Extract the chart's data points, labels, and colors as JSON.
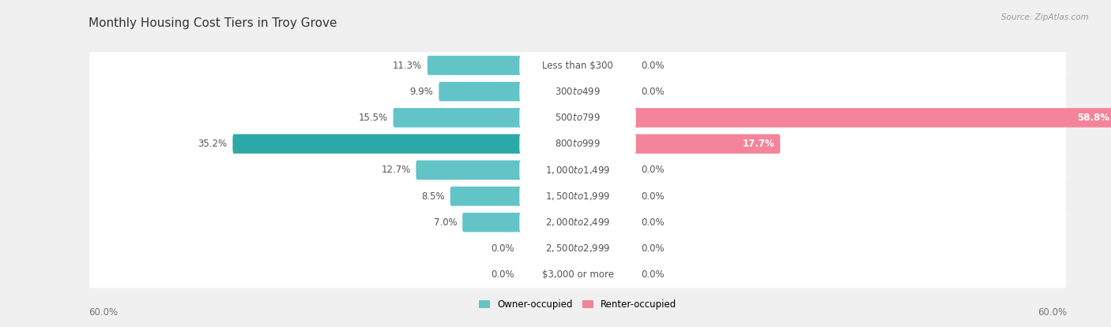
{
  "title": "Monthly Housing Cost Tiers in Troy Grove",
  "source": "Source: ZipAtlas.com",
  "categories": [
    "Less than $300",
    "$300 to $499",
    "$500 to $799",
    "$800 to $999",
    "$1,000 to $1,499",
    "$1,500 to $1,999",
    "$2,000 to $2,499",
    "$2,500 to $2,999",
    "$3,000 or more"
  ],
  "owner_values": [
    11.3,
    9.9,
    15.5,
    35.2,
    12.7,
    8.5,
    7.0,
    0.0,
    0.0
  ],
  "renter_values": [
    0.0,
    0.0,
    58.8,
    17.7,
    0.0,
    0.0,
    0.0,
    0.0,
    0.0
  ],
  "owner_color": "#62C4C7",
  "renter_color": "#F4849A",
  "owner_color_dark": "#2BA8A8",
  "background_color": "#F0F0F0",
  "row_bg_color": "#FFFFFF",
  "axis_limit": 60.0,
  "title_fontsize": 11,
  "label_fontsize": 8.5,
  "value_fontsize": 8.5,
  "tick_fontsize": 8.5,
  "source_fontsize": 7.5
}
